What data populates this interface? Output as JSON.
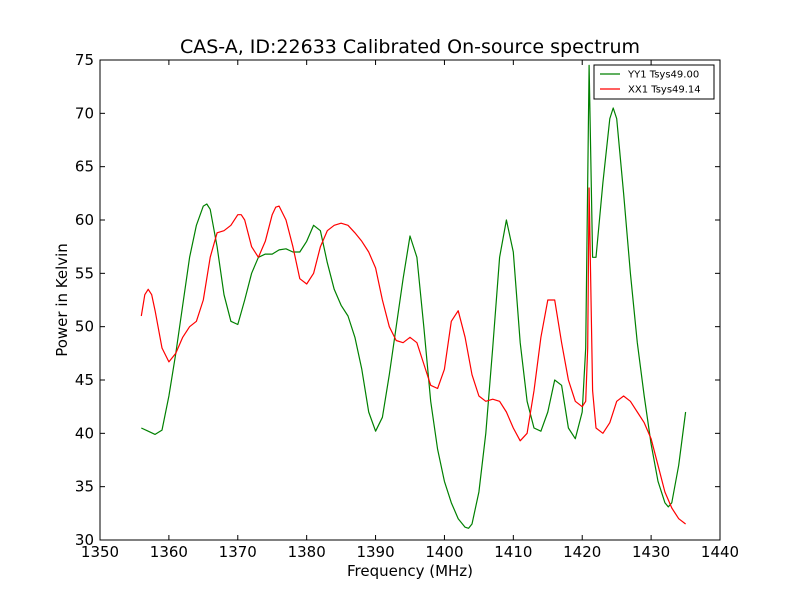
{
  "chart_data": {
    "type": "line",
    "title": "CAS-A, ID:22633 Calibrated On-source spectrum",
    "xlabel": "Frequency (MHz)",
    "ylabel": "Power in Kelvin",
    "xlim": [
      1350,
      1440
    ],
    "ylim": [
      30,
      75
    ],
    "xticks": [
      1350,
      1360,
      1370,
      1380,
      1390,
      1400,
      1410,
      1420,
      1430,
      1440
    ],
    "yticks": [
      30,
      35,
      40,
      45,
      50,
      55,
      60,
      65,
      70,
      75
    ],
    "grid": false,
    "legend": "top-right",
    "series": [
      {
        "name": "YY1 Tsys49.00",
        "color": "#008000",
        "x": [
          1356,
          1357,
          1358,
          1359,
          1360,
          1361,
          1362,
          1363,
          1364,
          1365,
          1365.5,
          1366,
          1367,
          1368,
          1369,
          1370,
          1371,
          1372,
          1373,
          1374,
          1375,
          1376,
          1377,
          1378,
          1379,
          1380,
          1381,
          1382,
          1383,
          1384,
          1385,
          1386,
          1387,
          1388,
          1389,
          1390,
          1391,
          1392,
          1393,
          1394,
          1395,
          1396,
          1397,
          1398,
          1399,
          1400,
          1401,
          1402,
          1403,
          1403.5,
          1404,
          1405,
          1406,
          1407,
          1408,
          1409,
          1410,
          1411,
          1412,
          1413,
          1414,
          1415,
          1416,
          1417,
          1418,
          1419,
          1420,
          1420.5,
          1421,
          1421.5,
          1422,
          1423,
          1424,
          1424.5,
          1425,
          1426,
          1427,
          1428,
          1429,
          1430,
          1431,
          1432,
          1432.5,
          1433,
          1434,
          1435
        ],
        "values": [
          40.5,
          40.2,
          39.9,
          40.3,
          43.5,
          47.5,
          52.0,
          56.5,
          59.5,
          61.3,
          61.5,
          61.0,
          57.5,
          53.0,
          50.5,
          50.2,
          52.5,
          55.0,
          56.5,
          56.8,
          56.8,
          57.2,
          57.3,
          57.0,
          57.0,
          58.0,
          59.5,
          59.0,
          56.0,
          53.5,
          52.0,
          51.0,
          49.0,
          46.0,
          42.0,
          40.2,
          41.5,
          45.5,
          50.0,
          54.5,
          58.5,
          56.5,
          50.0,
          43.0,
          38.5,
          35.5,
          33.5,
          32.0,
          31.2,
          31.1,
          31.5,
          34.5,
          40.0,
          48.0,
          56.5,
          60.0,
          57.0,
          48.5,
          43.0,
          40.5,
          40.2,
          42.0,
          45.0,
          44.5,
          40.5,
          39.5,
          42.0,
          48.0,
          74.5,
          56.5,
          56.5,
          63.5,
          69.5,
          70.5,
          69.5,
          62.5,
          55.0,
          48.5,
          43.5,
          39.0,
          35.5,
          33.5,
          33.1,
          33.5,
          37.0,
          42.0
        ]
      },
      {
        "name": "XX1 Tsys49.14",
        "color": "#ff0000",
        "x": [
          1356,
          1356.5,
          1357,
          1357.5,
          1358,
          1359,
          1360,
          1361,
          1362,
          1363,
          1364,
          1365,
          1366,
          1367,
          1368,
          1369,
          1370,
          1370.5,
          1371,
          1372,
          1373,
          1374,
          1375,
          1375.5,
          1376,
          1377,
          1378,
          1379,
          1380,
          1381,
          1382,
          1383,
          1384,
          1385,
          1386,
          1387,
          1388,
          1389,
          1390,
          1391,
          1392,
          1393,
          1394,
          1395,
          1396,
          1397,
          1398,
          1399,
          1400,
          1401,
          1402,
          1403,
          1404,
          1405,
          1406,
          1407,
          1408,
          1409,
          1410,
          1411,
          1412,
          1413,
          1414,
          1415,
          1416,
          1417,
          1418,
          1419,
          1420,
          1420.5,
          1420.8,
          1421,
          1421.5,
          1422,
          1423,
          1424,
          1425,
          1426,
          1427,
          1428,
          1429,
          1430,
          1431,
          1432,
          1433,
          1434,
          1435
        ],
        "values": [
          51.0,
          53.0,
          53.5,
          53.0,
          51.5,
          48.0,
          46.7,
          47.5,
          49.0,
          50.0,
          50.5,
          52.5,
          56.5,
          58.8,
          59.0,
          59.5,
          60.5,
          60.5,
          60.0,
          57.5,
          56.5,
          58.0,
          60.5,
          61.2,
          61.3,
          60.0,
          57.5,
          54.5,
          54.0,
          55.0,
          57.5,
          59.0,
          59.5,
          59.7,
          59.5,
          58.8,
          58.0,
          57.0,
          55.5,
          52.5,
          50.0,
          48.7,
          48.5,
          49.0,
          48.5,
          46.5,
          44.5,
          44.2,
          46.0,
          50.5,
          51.5,
          49.0,
          45.5,
          43.5,
          43.0,
          43.2,
          43.0,
          42.0,
          40.5,
          39.3,
          40.0,
          44.0,
          49.0,
          52.5,
          52.5,
          48.5,
          45.0,
          43.0,
          42.5,
          43.0,
          48.0,
          63.0,
          44.0,
          40.5,
          40.0,
          41.0,
          43.0,
          43.5,
          43.0,
          42.0,
          41.0,
          39.5,
          37.0,
          34.5,
          33.0,
          32.0,
          31.5
        ]
      }
    ]
  }
}
